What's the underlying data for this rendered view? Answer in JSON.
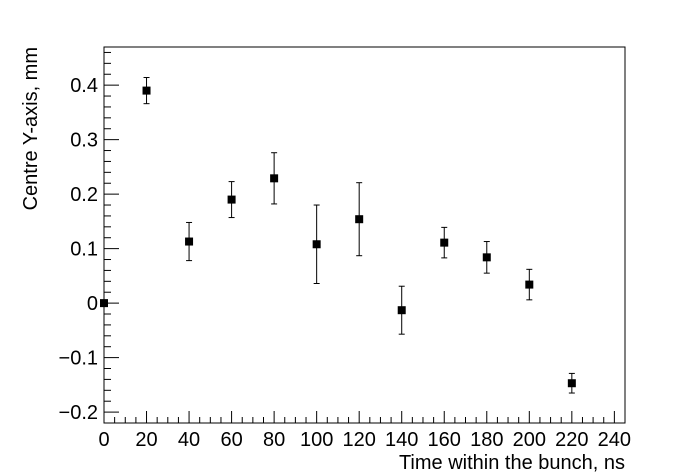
{
  "chart_data": {
    "type": "scatter",
    "xlabel": "Time within the bunch, ns",
    "ylabel": "Centre Y-axis, mm",
    "xlim": [
      0,
      245
    ],
    "ylim": [
      -0.22,
      0.47
    ],
    "x_ticks": [
      0,
      20,
      40,
      60,
      80,
      100,
      120,
      140,
      160,
      180,
      200,
      220,
      240
    ],
    "y_ticks": [
      -0.2,
      -0.1,
      0,
      0.1,
      0.2,
      0.3,
      0.4
    ],
    "y_tick_labels": [
      "−0.2",
      "−0.1",
      "0",
      "0.1",
      "0.2",
      "0.3",
      "0.4"
    ],
    "grid": false,
    "marker_color": "#000000",
    "points": [
      {
        "x": 0,
        "y": 0.0,
        "err": 0.0
      },
      {
        "x": 20,
        "y": 0.39,
        "err": 0.024
      },
      {
        "x": 40,
        "y": 0.113,
        "err": 0.035
      },
      {
        "x": 60,
        "y": 0.19,
        "err": 0.033
      },
      {
        "x": 80,
        "y": 0.229,
        "err": 0.047
      },
      {
        "x": 100,
        "y": 0.108,
        "err": 0.072
      },
      {
        "x": 120,
        "y": 0.154,
        "err": 0.067
      },
      {
        "x": 140,
        "y": -0.013,
        "err": 0.044
      },
      {
        "x": 160,
        "y": 0.111,
        "err": 0.028
      },
      {
        "x": 180,
        "y": 0.084,
        "err": 0.029
      },
      {
        "x": 200,
        "y": 0.034,
        "err": 0.028
      },
      {
        "x": 220,
        "y": -0.147,
        "err": 0.018
      }
    ]
  }
}
